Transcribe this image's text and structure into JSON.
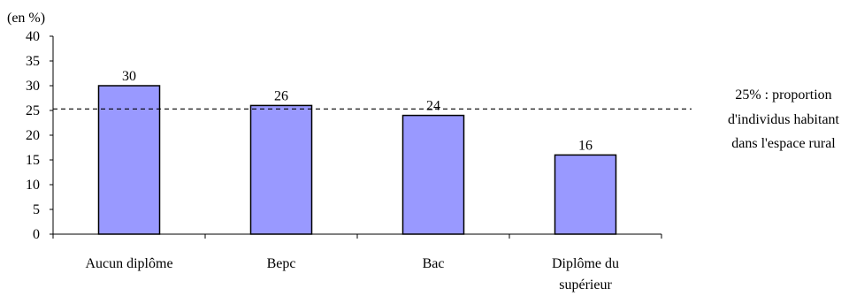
{
  "chart_data": {
    "type": "bar",
    "unit_label": "(en %)",
    "categories": [
      "Aucun diplôme",
      "Bepc",
      "Bac",
      "Diplôme du supérieur"
    ],
    "values": [
      30,
      26,
      24,
      16
    ],
    "value_labels": [
      "30",
      "26",
      "24",
      "16"
    ],
    "ylim": [
      0,
      40
    ],
    "yticks": [
      "0",
      "5",
      "10",
      "15",
      "20",
      "25",
      "30",
      "35",
      "40"
    ],
    "reference_line": {
      "value": 25.3,
      "style": "dashed",
      "annotation": [
        "25% : proportion",
        "d'individus habitant",
        "dans l'espace rural"
      ]
    },
    "grid": false,
    "bar_color": "#9999ff",
    "bar_outline": "#000000"
  }
}
